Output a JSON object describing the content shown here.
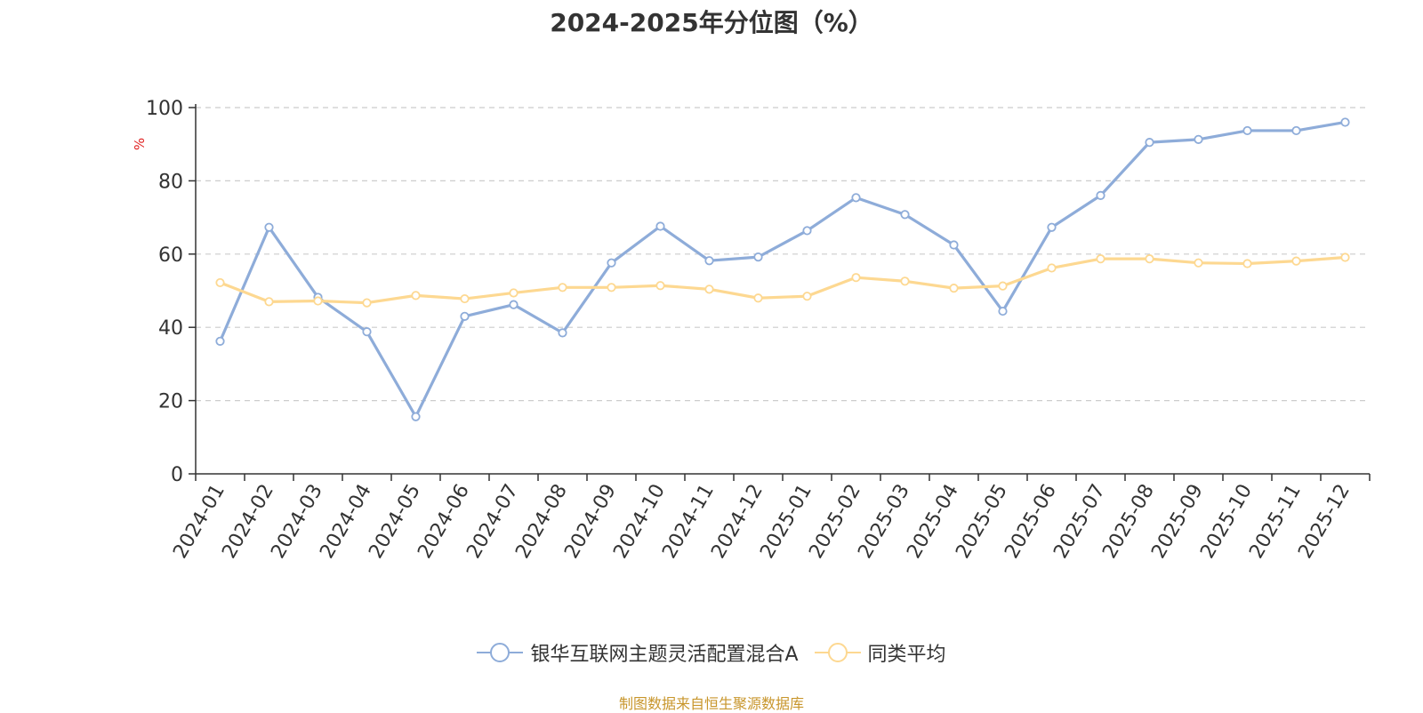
{
  "chart_data": {
    "type": "line",
    "title": "2024-2025年分位图（%）",
    "ylabel": "%",
    "xlabel": "",
    "ylim": [
      0,
      100
    ],
    "yticks": [
      0,
      20,
      40,
      60,
      80,
      100
    ],
    "grid": true,
    "legend_position": "bottom-center",
    "categories": [
      "2024-01",
      "2024-02",
      "2024-03",
      "2024-04",
      "2024-05",
      "2024-06",
      "2024-07",
      "2024-08",
      "2024-09",
      "2024-10",
      "2024-11",
      "2024-12",
      "2025-01",
      "2025-02",
      "2025-03",
      "2025-04",
      "2025-05",
      "2025-06",
      "2025-07",
      "2025-08",
      "2025-09",
      "2025-10",
      "2025-11",
      "2025-12"
    ],
    "series": [
      {
        "name": "银华互联网主题灵活配置混合A",
        "color": "#8eacd9",
        "values": [
          36.2,
          67.3,
          48.2,
          38.8,
          15.6,
          43.0,
          46.2,
          38.5,
          57.6,
          67.6,
          58.2,
          59.2,
          66.4,
          75.4,
          70.8,
          62.5,
          44.4,
          67.3,
          76.0,
          90.5,
          91.3,
          93.7,
          93.7,
          96.0
        ]
      },
      {
        "name": "同类平均",
        "color": "#fdd891",
        "values": [
          52.2,
          47.0,
          47.2,
          46.7,
          48.7,
          47.8,
          49.4,
          50.9,
          50.9,
          51.4,
          50.4,
          48.0,
          48.5,
          53.6,
          52.6,
          50.7,
          51.3,
          56.2,
          58.7,
          58.7,
          57.6,
          57.4,
          58.1,
          59.1
        ]
      }
    ]
  },
  "legend": {
    "items": [
      {
        "label": "银华互联网主题灵活配置混合A",
        "color": "#8eacd9"
      },
      {
        "label": "同类平均",
        "color": "#fdd891"
      }
    ]
  },
  "source_note": "制图数据来自恒生聚源数据库"
}
